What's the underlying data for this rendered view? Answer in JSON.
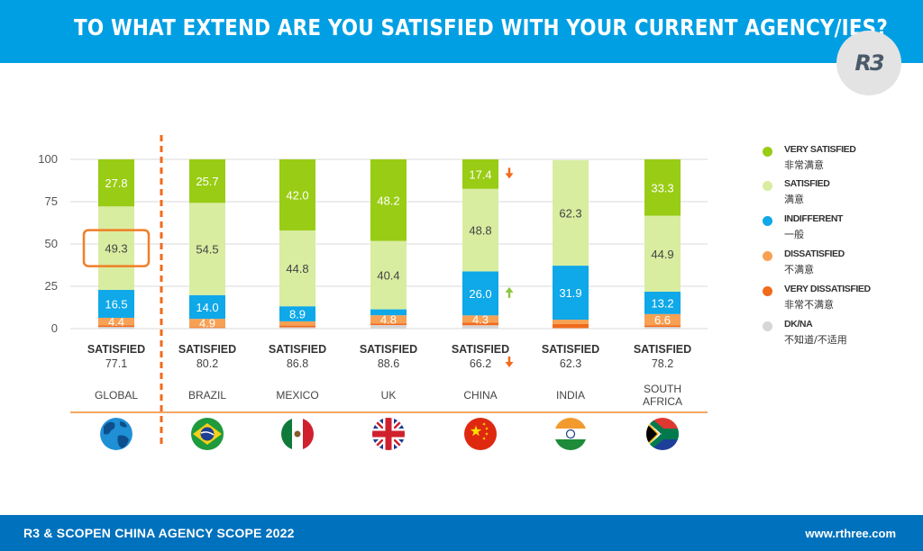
{
  "header": {
    "title": "TO WHAT EXTEND ARE YOU SATISFIED WITH YOUR CURRENT AGENCY/IES?"
  },
  "logo": {
    "text": "R3"
  },
  "footer": {
    "left": "R3 & SCOPEN CHINA AGENCY SCOPE 2022",
    "right": "www.rthree.com"
  },
  "colors": {
    "very_satisfied": "#99cc14",
    "satisfied": "#d8eda0",
    "indifferent": "#0fa8e8",
    "dissatisfied": "#f7a154",
    "very_dissatisfied": "#f26a1b",
    "dk_na": "#d6d6d6",
    "highlight_box": "#f07f27",
    "divider": "#f26a1b",
    "arrow_down": "#f26a1b",
    "arrow_up": "#8dc63f"
  },
  "legend": [
    {
      "key": "very_satisfied",
      "en": "VERY SATISFIED",
      "zh": "非常满意"
    },
    {
      "key": "satisfied",
      "en": "SATISFIED",
      "zh": "满意"
    },
    {
      "key": "indifferent",
      "en": "INDIFFERENT",
      "zh": "一般"
    },
    {
      "key": "dissatisfied",
      "en": "DISSATISFIED",
      "zh": "不满意"
    },
    {
      "key": "very_dissatisfied",
      "en": "VERY DISSATISFIED",
      "zh": "非常不满意"
    },
    {
      "key": "dk_na",
      "en": "DK/NA",
      "zh": "不知道/不适用"
    }
  ],
  "chart_data": {
    "type": "bar",
    "stacked": true,
    "ylim": [
      0,
      100
    ],
    "yticks": [
      0,
      25,
      50,
      75,
      100
    ],
    "grid": true,
    "legend_position": "right",
    "satisfied_caption": "SATISFIED",
    "categories": [
      "GLOBAL",
      "BRAZIL",
      "MEXICO",
      "UK",
      "CHINA",
      "INDIA",
      "SOUTH AFRICA"
    ],
    "category_lines": [
      [
        "GLOBAL"
      ],
      [
        "BRAZIL"
      ],
      [
        "MEXICO"
      ],
      [
        "UK"
      ],
      [
        "CHINA"
      ],
      [
        "INDIA"
      ],
      [
        "SOUTH",
        "AFRICA"
      ]
    ],
    "satisfied_totals": [
      "77.1",
      "80.2",
      "86.8",
      "88.6",
      "66.2",
      "62.3",
      "78.2"
    ],
    "series": [
      {
        "name": "VERY SATISFIED",
        "key": "very_satisfied",
        "values": [
          27.8,
          25.7,
          42.0,
          48.2,
          17.4,
          0,
          33.3
        ],
        "labels": [
          "27.8",
          "25.7",
          "42.0",
          "48.2",
          "17.4",
          "",
          "33.3"
        ]
      },
      {
        "name": "SATISFIED",
        "key": "satisfied",
        "values": [
          49.3,
          54.5,
          44.8,
          40.4,
          48.8,
          62.3,
          44.9
        ],
        "labels": [
          "49.3",
          "54.5",
          "44.8",
          "40.4",
          "48.8",
          "62.3",
          "44.9"
        ]
      },
      {
        "name": "INDIFFERENT",
        "key": "indifferent",
        "values": [
          16.5,
          14.0,
          8.9,
          3.5,
          26.0,
          31.9,
          13.2
        ],
        "labels": [
          "16.5",
          "14.0",
          "8.9",
          "",
          "26.0",
          "31.9",
          "13.2"
        ]
      },
      {
        "name": "DISSATISFIED",
        "key": "dissatisfied",
        "values": [
          4.4,
          4.9,
          2.5,
          4.8,
          4.3,
          2.5,
          6.6
        ],
        "labels": [
          "4.4",
          "4.9",
          "",
          "4.8",
          "4.3",
          "",
          "6.6"
        ]
      },
      {
        "name": "VERY DISSATISFIED",
        "key": "very_dissatisfied",
        "values": [
          1.0,
          0.5,
          1.0,
          1.0,
          1.5,
          2.5,
          1.0
        ],
        "labels": [
          "",
          "",
          "",
          "",
          "",
          "",
          ""
        ]
      },
      {
        "name": "DK/NA",
        "key": "dk_na",
        "values": [
          1.0,
          0.4,
          0.8,
          2.1,
          2.0,
          0.3,
          1.0
        ],
        "labels": [
          "",
          "",
          "",
          "",
          "",
          "",
          ""
        ]
      }
    ],
    "annotations": {
      "highlight": {
        "category": "GLOBAL",
        "series": "SATISFIED"
      },
      "arrows": [
        {
          "category": "CHINA",
          "series": "VERY SATISFIED",
          "direction": "down"
        },
        {
          "category": "CHINA",
          "series": "INDIFFERENT",
          "direction": "up"
        },
        {
          "category": "CHINA",
          "target": "satisfied_total",
          "direction": "down"
        }
      ]
    },
    "flags": [
      "globe-icon",
      "brazil-flag-icon",
      "mexico-flag-icon",
      "uk-flag-icon",
      "china-flag-icon",
      "india-flag-icon",
      "south-africa-flag-icon"
    ]
  }
}
